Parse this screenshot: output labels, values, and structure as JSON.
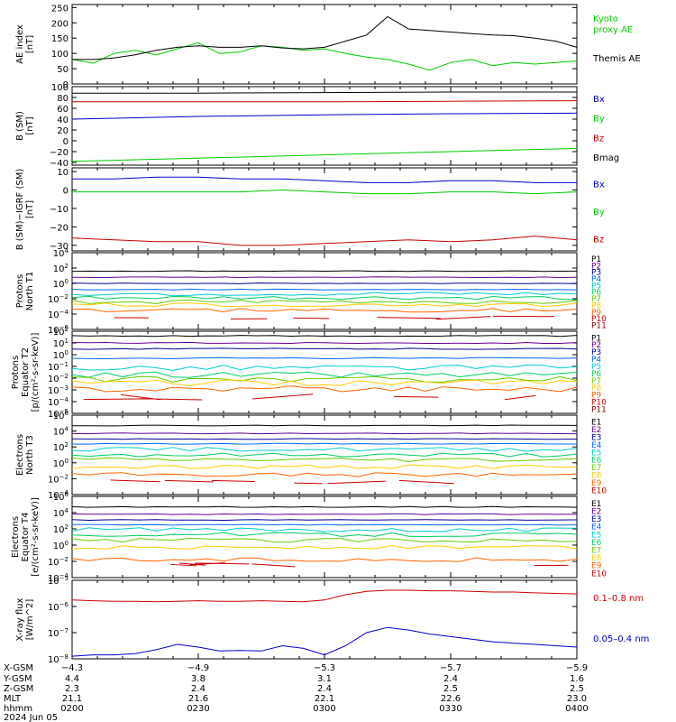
{
  "chart_data": [
    {
      "type": "line",
      "panel": "ae",
      "ylabel": "AE index\n[nT]",
      "yticks": [
        0,
        50,
        100,
        150,
        200,
        250
      ],
      "ylim": [
        0,
        260
      ],
      "x": [
        0,
        5,
        10,
        15,
        20,
        25,
        30,
        35,
        40,
        45,
        50,
        55,
        60,
        65,
        70,
        75,
        80,
        85,
        90,
        95,
        100,
        105,
        110,
        115,
        120
      ],
      "series": [
        {
          "name": "Kyoto\nproxy AE",
          "color": "#00cc00",
          "values": [
            80,
            68,
            100,
            110,
            95,
            115,
            135,
            100,
            105,
            125,
            120,
            110,
            115,
            100,
            88,
            80,
            65,
            45,
            70,
            80,
            60,
            70,
            65,
            70,
            75
          ]
        },
        {
          "name": "Themis AE",
          "color": "#000000",
          "values": [
            80,
            80,
            85,
            95,
            110,
            120,
            125,
            120,
            120,
            125,
            118,
            115,
            120,
            140,
            160,
            220,
            180,
            175,
            170,
            165,
            160,
            158,
            150,
            140,
            120
          ]
        }
      ]
    },
    {
      "type": "line",
      "panel": "bsm",
      "ylabel": "B (SM)\n[nT]",
      "yticks": [
        -40,
        -20,
        0,
        20,
        40,
        60,
        80,
        100
      ],
      "ylim": [
        -45,
        100
      ],
      "x": [
        0,
        30,
        60,
        90,
        120
      ],
      "series": [
        {
          "name": "Bx",
          "color": "#0000cc",
          "values": [
            40,
            45,
            48,
            50,
            51
          ]
        },
        {
          "name": "By",
          "color": "#00cc00",
          "values": [
            -38,
            -32,
            -26,
            -20,
            -14
          ]
        },
        {
          "name": "Bz",
          "color": "#cc0000",
          "values": [
            72,
            72,
            72,
            73,
            74
          ]
        },
        {
          "name": "Bmag",
          "color": "#000000",
          "values": [
            88,
            88,
            89,
            90,
            90
          ]
        }
      ]
    },
    {
      "type": "line",
      "panel": "bigrf",
      "ylabel": "B (SM)−IGRF (SM)\n[nT]",
      "yticks": [
        -30,
        -20,
        -10,
        0,
        10
      ],
      "ylim": [
        -33,
        12
      ],
      "x": [
        0,
        10,
        20,
        30,
        40,
        50,
        60,
        70,
        80,
        90,
        100,
        110,
        120
      ],
      "series": [
        {
          "name": "Bx",
          "color": "#0000cc",
          "values": [
            6,
            6,
            7,
            7,
            6,
            6,
            5,
            4,
            4,
            5,
            5,
            4,
            4
          ]
        },
        {
          "name": "By",
          "color": "#00cc00",
          "values": [
            -1,
            -1,
            -1,
            -1,
            -1,
            0,
            -1,
            -2,
            -2,
            -1,
            -1,
            -2,
            -1
          ]
        },
        {
          "name": "Bz",
          "color": "#cc0000",
          "values": [
            -26,
            -27,
            -28,
            -28,
            -30,
            -30,
            -29,
            -28,
            -27,
            -28,
            -27,
            -25,
            -27
          ]
        }
      ]
    },
    {
      "type": "line",
      "panel": "pn1",
      "ylabel": "Protons\nNorth T1",
      "log": true,
      "ymin_exp": -6,
      "ymax_exp": 4,
      "tick_exps": [
        4,
        2,
        0,
        -2,
        -4,
        -6
      ],
      "channels": [
        "P1",
        "P2",
        "P3",
        "P4",
        "P5",
        "P6",
        "P7",
        "P8",
        "P9",
        "P10",
        "P11"
      ],
      "channel_colors": [
        "#000000",
        "#660099",
        "#000099",
        "#0066ff",
        "#00cccc",
        "#00cc66",
        "#66cc00",
        "#ffcc00",
        "#ff6600",
        "#cc0000",
        "#880000"
      ],
      "levels_exp": [
        1.6,
        0.8,
        0,
        -0.8,
        -1.4,
        -1.9,
        -2.4,
        -2.8,
        -3.5,
        -4.5,
        -6
      ]
    },
    {
      "type": "line",
      "panel": "pe2",
      "ylabel": "Protons\nEquator T2\n[p/(cm²-s-sr-keV)]",
      "log": true,
      "ymin_exp": -5,
      "ymax_exp": 2,
      "tick_exps": [
        2,
        1,
        0,
        -1,
        -2,
        -3,
        -4,
        -5
      ],
      "channels": [
        "P1",
        "P2",
        "P3",
        "P4",
        "P5",
        "P6",
        "P7",
        "P8",
        "P9",
        "P10",
        "P11"
      ],
      "channel_colors": [
        "#000000",
        "#660099",
        "#000099",
        "#0066ff",
        "#00cccc",
        "#00cc66",
        "#66cc00",
        "#ffcc00",
        "#ff6600",
        "#cc0000",
        "#880000"
      ],
      "levels_exp": [
        1.6,
        1.0,
        0.5,
        -0.3,
        -1.1,
        -1.7,
        -2.1,
        -2.4,
        -2.9,
        -3.6,
        -5
      ]
    },
    {
      "type": "line",
      "panel": "en3",
      "ylabel": "Electrons\nNorth T3",
      "log": true,
      "ymin_exp": -4,
      "ymax_exp": 6,
      "tick_exps": [
        6,
        4,
        2,
        0,
        -2,
        -4
      ],
      "channels": [
        "E1",
        "E2",
        "E3",
        "E4",
        "E5",
        "E6",
        "E7",
        "E8",
        "E9",
        "E10"
      ],
      "channel_colors": [
        "#000000",
        "#660099",
        "#000099",
        "#0066ff",
        "#00cccc",
        "#00cc66",
        "#66cc00",
        "#ffcc00",
        "#ff6600",
        "#cc0000"
      ],
      "levels_exp": [
        4.7,
        3.7,
        3.0,
        2.4,
        1.7,
        1.0,
        0.4,
        -0.5,
        -1.5,
        -2.4
      ]
    },
    {
      "type": "line",
      "panel": "ee4",
      "ylabel": "Electrons\nEquator T4\n[e/(cm²-s-sr-keV)]",
      "log": true,
      "ymin_exp": -4,
      "ymax_exp": 6,
      "tick_exps": [
        6,
        4,
        2,
        0,
        -2,
        -4
      ],
      "channels": [
        "E1",
        "E2",
        "E3",
        "E4",
        "E5",
        "E6",
        "E7",
        "E8",
        "E9",
        "E10"
      ],
      "channel_colors": [
        "#000000",
        "#660099",
        "#000099",
        "#0066ff",
        "#00cccc",
        "#00cc66",
        "#66cc00",
        "#ffcc00",
        "#ff6600",
        "#cc0000"
      ],
      "levels_exp": [
        4.7,
        3.8,
        3.1,
        2.5,
        1.9,
        1.3,
        0.6,
        -0.3,
        -1.8,
        -2.4
      ]
    },
    {
      "type": "line",
      "panel": "xray",
      "ylabel": "X-ray flux\n[W/m^2]",
      "log": true,
      "ymin_exp": -8,
      "ymax_exp": -5,
      "tick_exps": [
        -5,
        -6,
        -7,
        -8
      ],
      "x": [
        0,
        5,
        10,
        15,
        20,
        25,
        30,
        35,
        40,
        45,
        50,
        55,
        60,
        65,
        70,
        75,
        80,
        85,
        90,
        95,
        100,
        105,
        110,
        115,
        120
      ],
      "series": [
        {
          "name": "0.1–0.8 nm",
          "color": "#cc0000",
          "log_values": [
            -5.75,
            -5.78,
            -5.8,
            -5.8,
            -5.82,
            -5.8,
            -5.78,
            -5.8,
            -5.8,
            -5.78,
            -5.8,
            -5.82,
            -5.75,
            -5.55,
            -5.42,
            -5.38,
            -5.38,
            -5.4,
            -5.4,
            -5.42,
            -5.45,
            -5.45,
            -5.48,
            -5.5,
            -5.52
          ]
        },
        {
          "name": "0.05–0.4 nm",
          "color": "#0000cc",
          "log_values": [
            -7.9,
            -7.85,
            -7.85,
            -7.8,
            -7.65,
            -7.45,
            -7.55,
            -7.7,
            -7.68,
            -7.7,
            -7.5,
            -7.6,
            -7.85,
            -7.5,
            -7.0,
            -6.8,
            -6.9,
            -7.05,
            -7.15,
            -7.25,
            -7.35,
            -7.4,
            -7.45,
            -7.5,
            -7.55
          ]
        }
      ]
    }
  ],
  "axis": {
    "row_labels": [
      "X-GSM",
      "Y-GSM",
      "Z-GSM",
      "MLT",
      "hhmm",
      "2024 Jun 05"
    ],
    "columns": [
      {
        "x": -4.3,
        "y": 4.4,
        "z": 2.3,
        "mlt": 21.1,
        "hhmm": "0200",
        "t": 0
      },
      {
        "x": -4.9,
        "y": 3.8,
        "z": 2.4,
        "mlt": 21.6,
        "hhmm": "0230",
        "t": 30
      },
      {
        "x": -5.3,
        "y": 3.1,
        "z": 2.4,
        "mlt": 22.1,
        "hhmm": "0300",
        "t": 60
      },
      {
        "x": -5.7,
        "y": 2.4,
        "z": 2.5,
        "mlt": 22.6,
        "hhmm": "0330",
        "t": 90
      },
      {
        "x": -5.9,
        "y": 1.6,
        "z": 2.5,
        "mlt": 23.0,
        "hhmm": "0400",
        "t": 120
      }
    ]
  }
}
